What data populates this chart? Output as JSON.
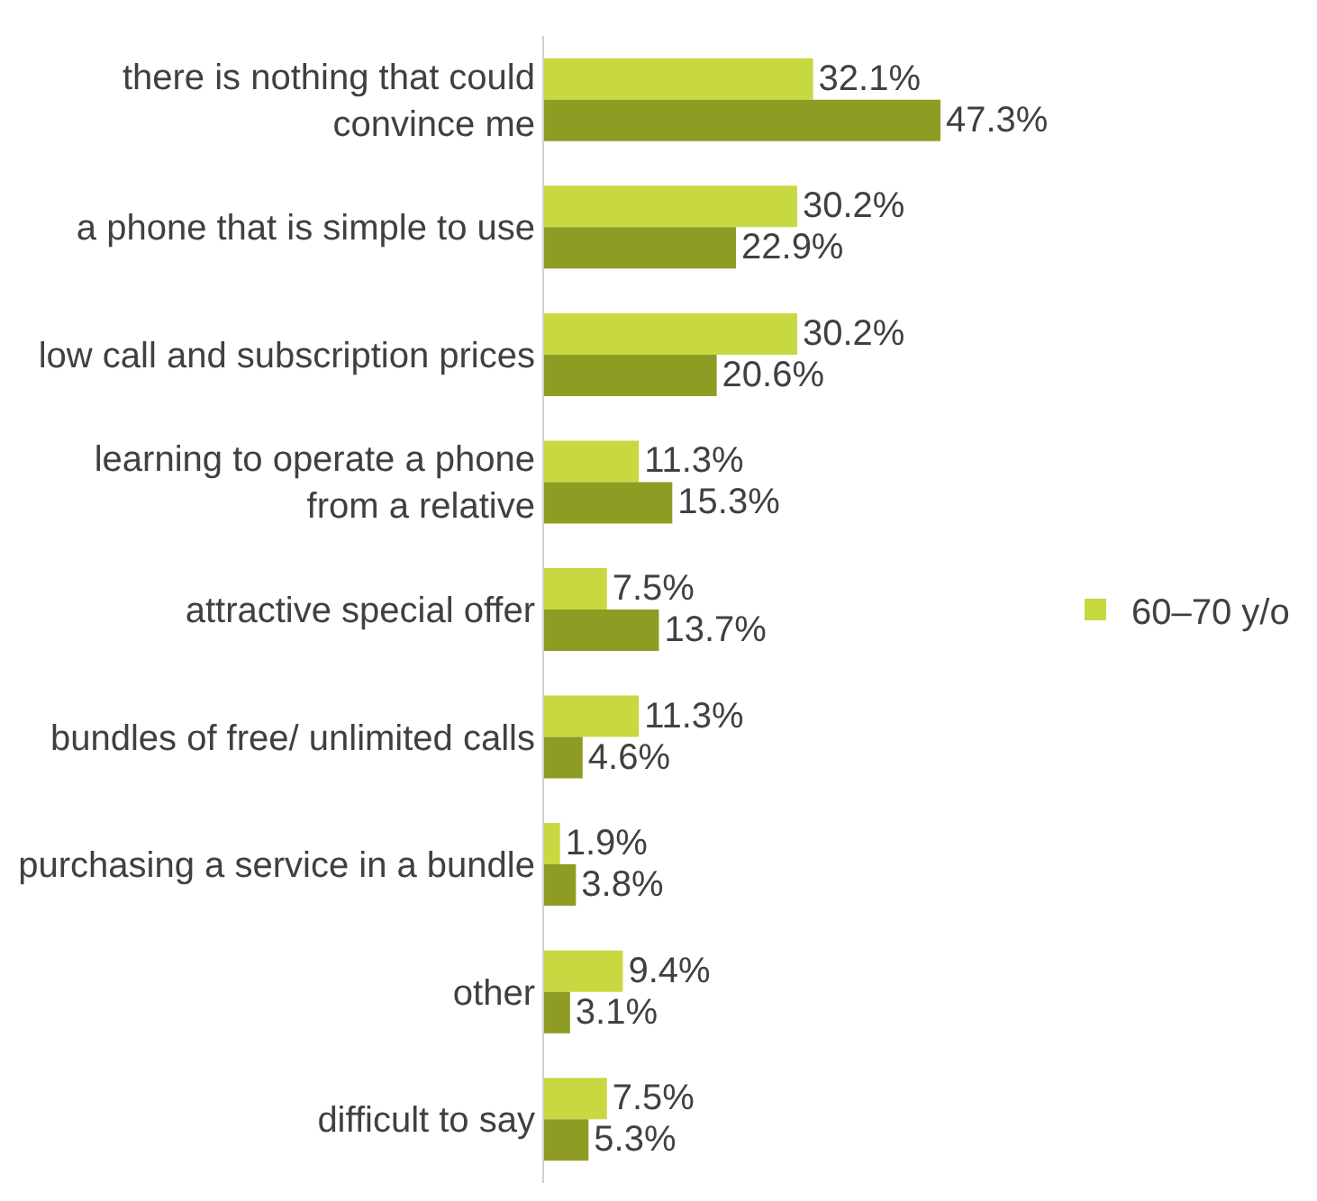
{
  "chart_data": {
    "type": "bar",
    "orientation": "horizontal",
    "categories": [
      "there is nothing that could convince me",
      "a phone that is simple to use",
      "low call and subscription prices",
      "learning to operate a phone from a relative",
      "attractive special offer",
      "bundles of free/ unlimited calls",
      "purchasing a service in a bundle",
      "other",
      "difficult to say"
    ],
    "series": [
      {
        "name": "60–70 y/o",
        "color": "#c8d841",
        "values": [
          32.1,
          30.2,
          30.2,
          11.3,
          7.5,
          11.3,
          1.9,
          9.4,
          7.5
        ],
        "value_labels": [
          "32.1%",
          "30.2%",
          "30.2%",
          "11.3%",
          "7.5%",
          "11.3%",
          "1.9%",
          "9.4%",
          "7.5%"
        ]
      },
      {
        "color": "#8f9c24",
        "values": [
          47.3,
          22.9,
          20.6,
          15.3,
          13.7,
          4.6,
          3.8,
          3.1,
          5.3
        ],
        "value_labels": [
          "47.3%",
          "22.9%",
          "20.6%",
          "15.3%",
          "13.7%",
          "4.6%",
          "3.8%",
          "3.1%",
          "5.3%"
        ]
      }
    ],
    "legend": "right",
    "grid": false
  }
}
